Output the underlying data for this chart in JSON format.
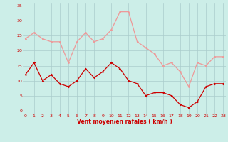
{
  "x": [
    0,
    1,
    2,
    3,
    4,
    5,
    6,
    7,
    8,
    9,
    10,
    11,
    12,
    13,
    14,
    15,
    16,
    17,
    18,
    19,
    20,
    21,
    22,
    23
  ],
  "wind_avg": [
    12,
    16,
    10,
    12,
    9,
    8,
    10,
    14,
    11,
    13,
    16,
    14,
    10,
    9,
    5,
    6,
    6,
    5,
    2,
    1,
    3,
    8,
    9,
    9
  ],
  "wind_gust": [
    24,
    26,
    24,
    23,
    23,
    16,
    23,
    26,
    23,
    24,
    27,
    33,
    33,
    23,
    21,
    19,
    15,
    16,
    13,
    8,
    16,
    15,
    18,
    18
  ],
  "xlabel": "Vent moyen/en rafales ( km/h )",
  "yticks": [
    0,
    5,
    10,
    15,
    20,
    25,
    30,
    35
  ],
  "xticks": [
    0,
    1,
    2,
    3,
    4,
    5,
    6,
    7,
    8,
    9,
    10,
    11,
    12,
    13,
    14,
    15,
    16,
    17,
    18,
    19,
    20,
    21,
    22,
    23
  ],
  "background_color": "#cceee8",
  "grid_color": "#aacccc",
  "avg_color": "#cc0000",
  "gust_color": "#ee9999",
  "ylim": [
    -1,
    36
  ],
  "xlim": [
    -0.3,
    23.3
  ]
}
